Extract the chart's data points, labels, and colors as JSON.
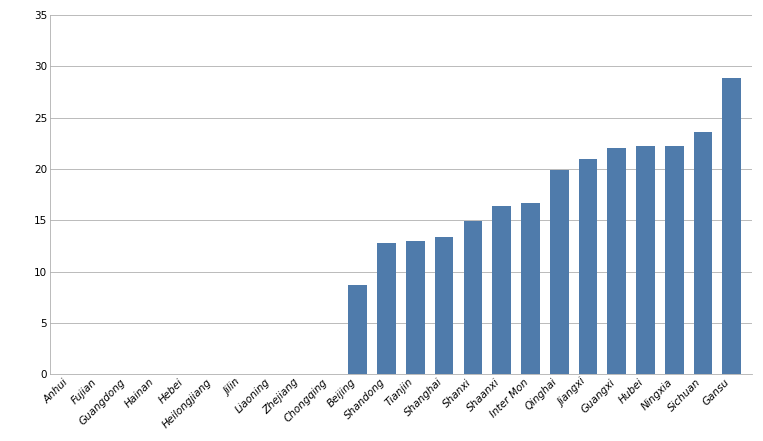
{
  "categories": [
    "Anhui",
    "Fujian",
    "Guangdong",
    "Hainan",
    "Hebei",
    "Heilongjiang",
    "Jilin",
    "Liaoning",
    "Zhejiang",
    "Chongqing",
    "Beijing",
    "Shandong",
    "Tianjin",
    "Shanghai",
    "Shanxi",
    "Shaanxi",
    "Inter Mon",
    "Qinghai",
    "Jiangxi",
    "Guangxi",
    "Hubei",
    "Ningxia",
    "Sichuan",
    "Gansu"
  ],
  "values": [
    0,
    0,
    0,
    0,
    0,
    0,
    0,
    0,
    0,
    0,
    8.7,
    12.8,
    13.0,
    13.4,
    14.9,
    16.4,
    16.7,
    19.9,
    21.0,
    22.0,
    22.2,
    22.2,
    23.6,
    28.9
  ],
  "bar_color": "#4f7bab",
  "ylim": [
    0,
    35
  ],
  "yticks": [
    0,
    5,
    10,
    15,
    20,
    25,
    30,
    35
  ],
  "grid_color": "#b0b0b0",
  "background_color": "#ffffff",
  "tick_labelsize": 7.5,
  "bar_width": 0.65,
  "rotation": 45,
  "figsize": [
    7.63,
    4.41
  ],
  "dpi": 100
}
